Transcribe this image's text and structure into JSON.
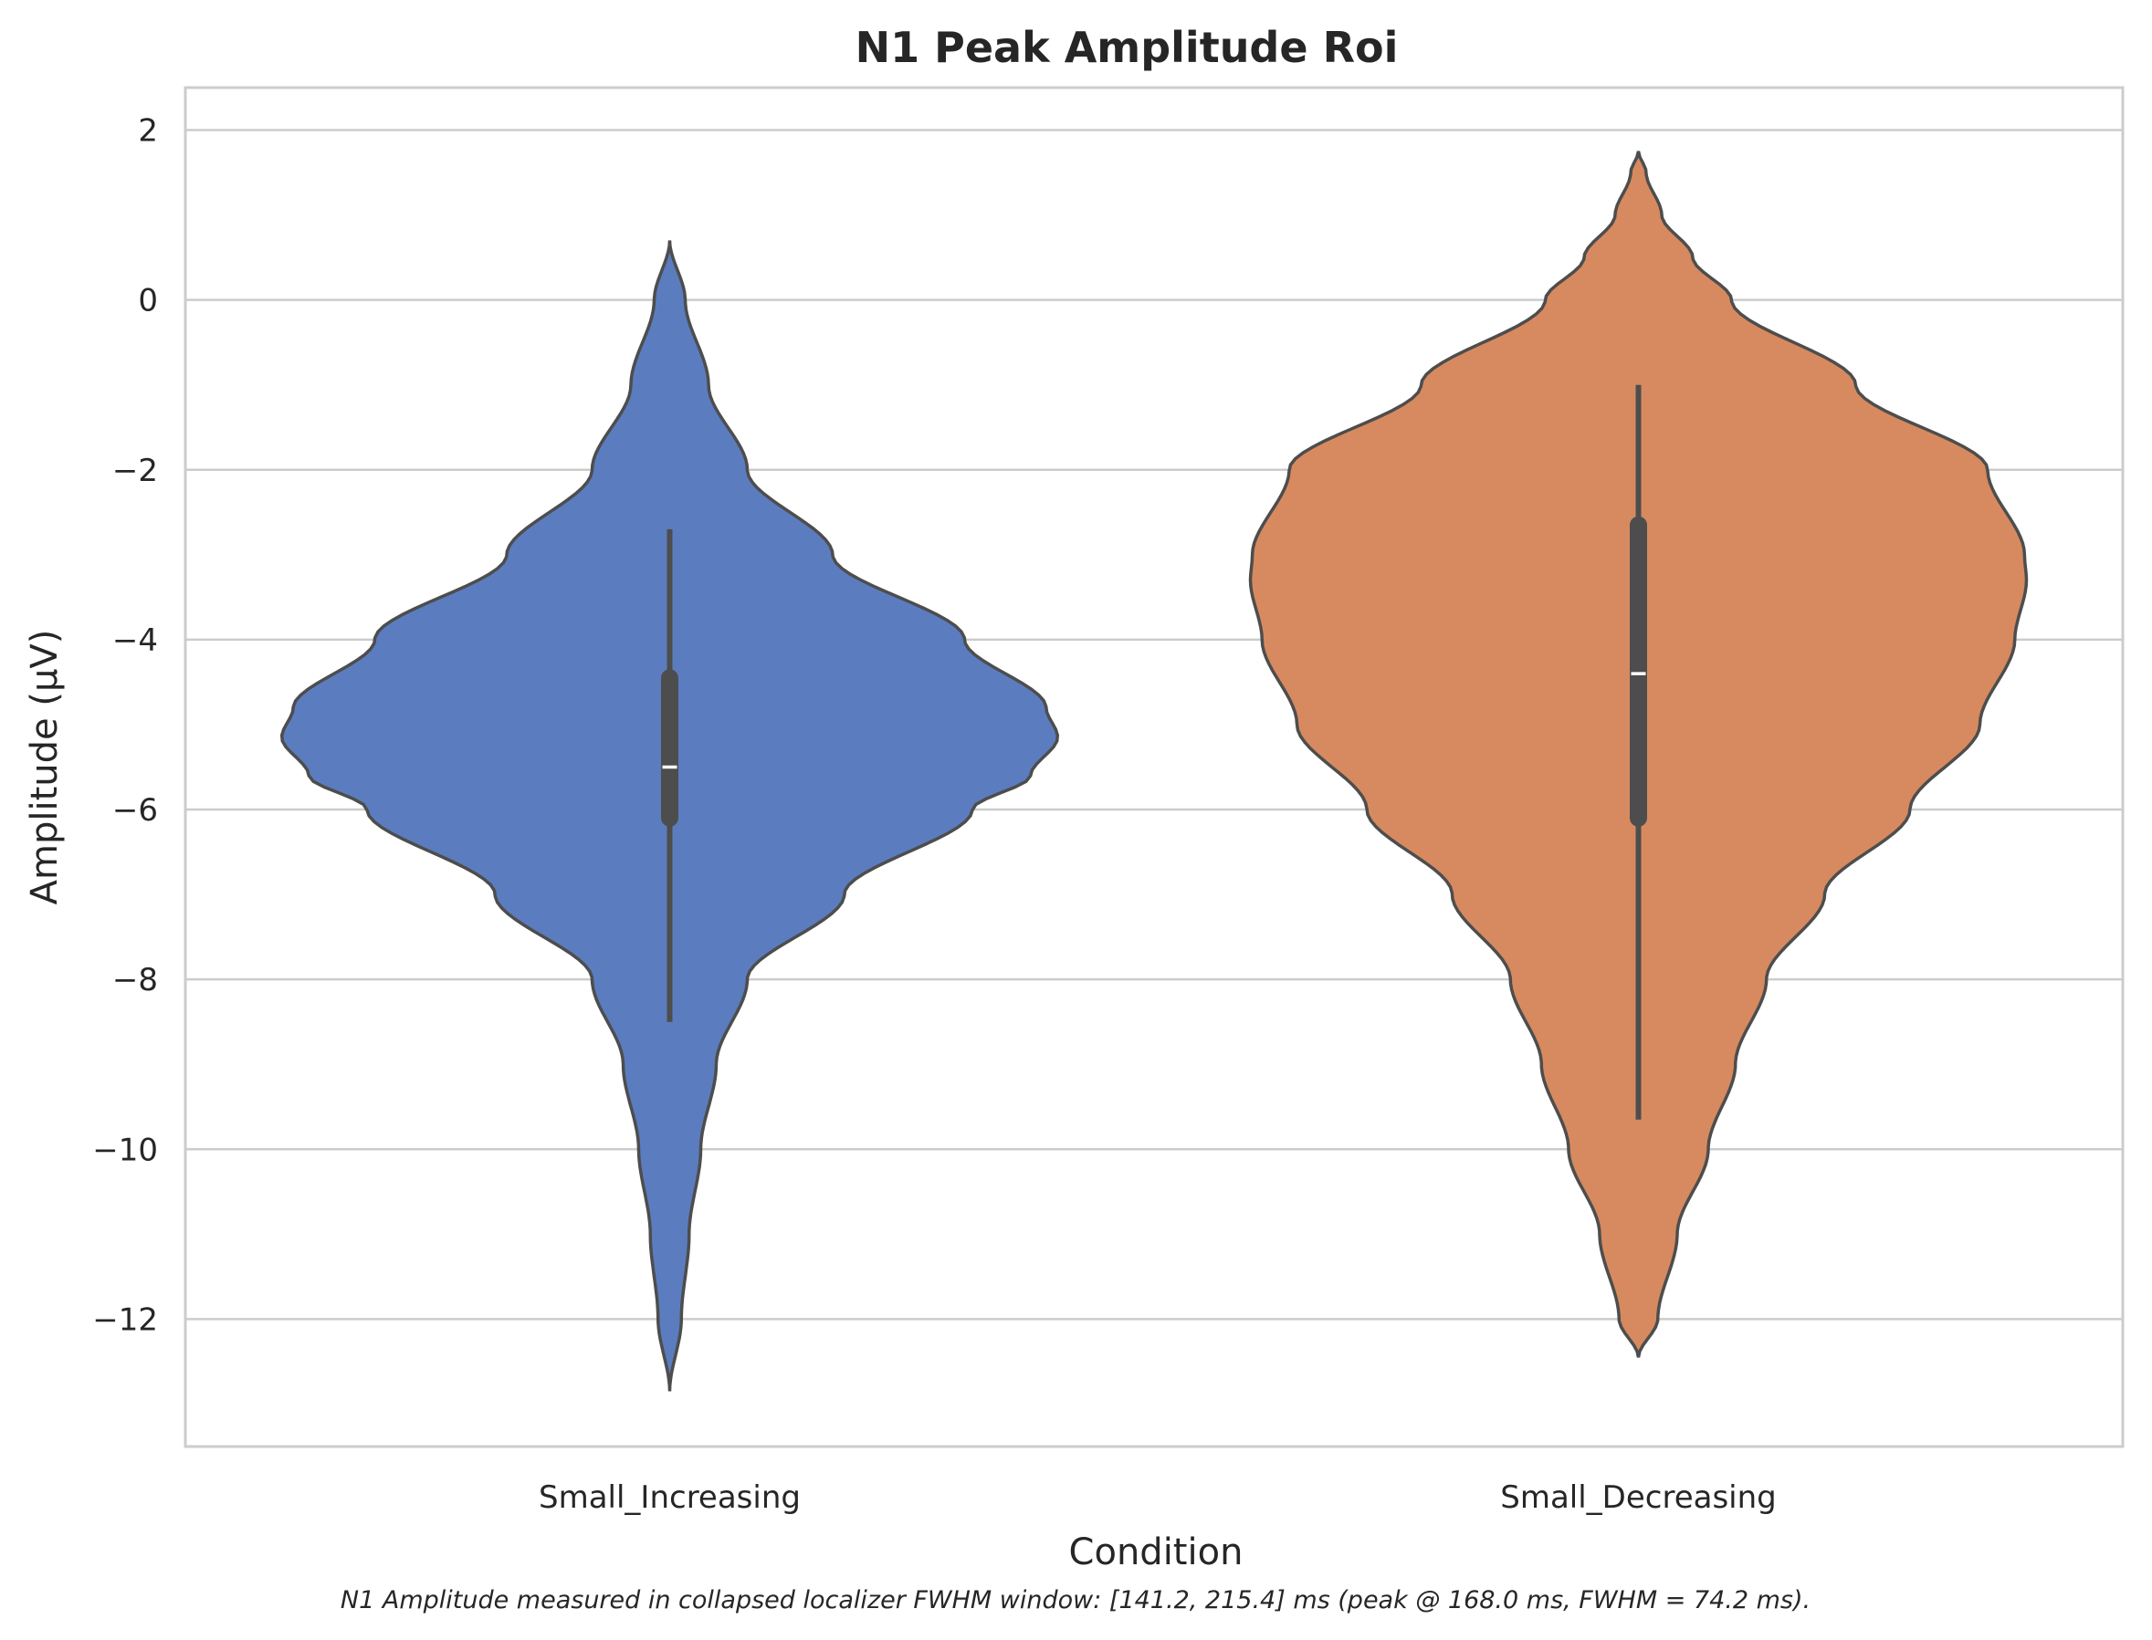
{
  "chart_data": {
    "type": "violin",
    "title": "N1 Peak Amplitude Roi",
    "xlabel": "Condition",
    "ylabel": "Amplitude (µV)",
    "caption": "N1 Amplitude measured in collapsed localizer FWHM window: [141.2, 215.4] ms (peak @ 168.0 ms, FWHM = 74.2 ms).",
    "ylim": [
      -13.5,
      2.5
    ],
    "yticks": [
      2,
      0,
      -2,
      -4,
      -6,
      -8,
      -10,
      -12
    ],
    "ytick_labels": [
      "2",
      "0",
      "−2",
      "−4",
      "−6",
      "−8",
      "−10",
      "−12"
    ],
    "grid": true,
    "categories": [
      "Small_Increasing",
      "Small_Decreasing"
    ],
    "violins": [
      {
        "category": "Small_Increasing",
        "color": "#5b7dbf",
        "max": 0.7,
        "min": -12.85,
        "whisker_high": -2.7,
        "q3": -4.45,
        "median": -5.5,
        "q1": -6.1,
        "whisker_low": -8.5,
        "mode": -5.15,
        "density_profile": [
          [
            0.7,
            0.0
          ],
          [
            0.0,
            0.04
          ],
          [
            -1.0,
            0.1
          ],
          [
            -2.0,
            0.2
          ],
          [
            -3.0,
            0.42
          ],
          [
            -4.0,
            0.76
          ],
          [
            -4.8,
            0.97
          ],
          [
            -5.15,
            1.0
          ],
          [
            -5.6,
            0.93
          ],
          [
            -6.0,
            0.78
          ],
          [
            -7.0,
            0.45
          ],
          [
            -8.0,
            0.2
          ],
          [
            -9.0,
            0.12
          ],
          [
            -10.0,
            0.08
          ],
          [
            -11.0,
            0.05
          ],
          [
            -12.0,
            0.03
          ],
          [
            -12.85,
            0.0
          ]
        ]
      },
      {
        "category": "Small_Decreasing",
        "color": "#d78a5f",
        "max": 1.75,
        "min": -12.45,
        "whisker_high": -1.0,
        "q3": -2.65,
        "median": -4.4,
        "q1": -6.1,
        "whisker_low": -9.65,
        "mode": -3.3,
        "density_profile": [
          [
            1.75,
            0.0
          ],
          [
            1.5,
            0.02
          ],
          [
            1.0,
            0.06
          ],
          [
            0.5,
            0.14
          ],
          [
            0.0,
            0.24
          ],
          [
            -1.0,
            0.56
          ],
          [
            -2.0,
            0.9
          ],
          [
            -3.0,
            0.995
          ],
          [
            -3.3,
            1.0
          ],
          [
            -4.0,
            0.97
          ],
          [
            -5.0,
            0.88
          ],
          [
            -6.0,
            0.7
          ],
          [
            -7.0,
            0.48
          ],
          [
            -8.0,
            0.33
          ],
          [
            -9.0,
            0.25
          ],
          [
            -10.0,
            0.18
          ],
          [
            -11.0,
            0.1
          ],
          [
            -12.0,
            0.05
          ],
          [
            -12.45,
            0.0
          ]
        ]
      }
    ]
  }
}
